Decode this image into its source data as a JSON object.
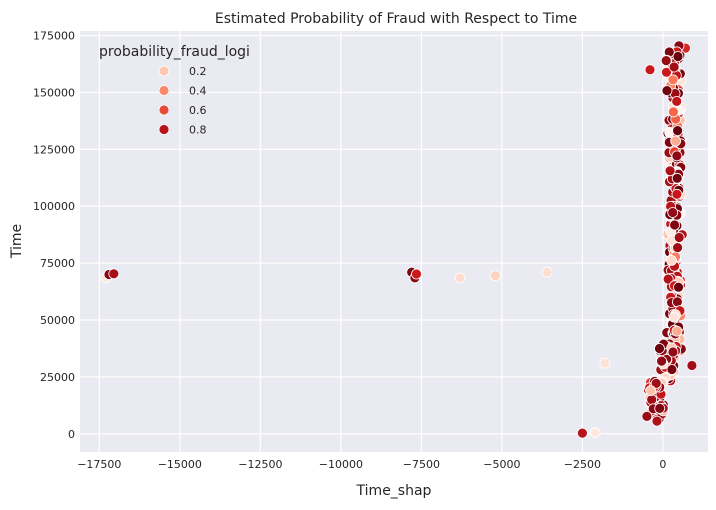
{
  "chart_data": {
    "type": "scatter",
    "title": "Estimated Probability of Fraud with Respect to Time",
    "xlabel": "Time_shap",
    "ylabel": "Time",
    "xlim": [
      -18100,
      1400
    ],
    "ylim": [
      -8000,
      177000
    ],
    "xticks": [
      -17500,
      -15000,
      -12500,
      -10000,
      -7500,
      -5000,
      -2500,
      0
    ],
    "xtick_labels": [
      "−17500",
      "−15000",
      "−12500",
      "−10000",
      "−7500",
      "−5000",
      "−2500",
      "0"
    ],
    "yticks": [
      0,
      25000,
      50000,
      75000,
      100000,
      125000,
      150000,
      175000
    ],
    "ytick_labels": [
      "0",
      "25000",
      "50000",
      "75000",
      "100000",
      "125000",
      "150000",
      "175000"
    ],
    "grid": true,
    "background": "#eaeaf2",
    "colormap": [
      "#fff5f0",
      "#fcbba1",
      "#fb6a4a",
      "#cb181d",
      "#67000d"
    ],
    "legend": {
      "title": "probability_fraud_logi",
      "placement": "top-left",
      "entries": [
        {
          "label": "0.2",
          "value": 0.2
        },
        {
          "label": "0.4",
          "value": 0.4
        },
        {
          "label": "0.6",
          "value": 0.6
        },
        {
          "label": "0.8",
          "value": 0.8
        }
      ]
    },
    "points": [
      {
        "x": -17300,
        "y": 68500,
        "p": 0.05
      },
      {
        "x": -17200,
        "y": 70000,
        "p": 0.92
      },
      {
        "x": -17050,
        "y": 70300,
        "p": 0.85
      },
      {
        "x": -7800,
        "y": 71000,
        "p": 0.95
      },
      {
        "x": -7700,
        "y": 68500,
        "p": 0.9
      },
      {
        "x": -7650,
        "y": 70200,
        "p": 0.75
      },
      {
        "x": -6300,
        "y": 68500,
        "p": 0.1
      },
      {
        "x": -5200,
        "y": 69500,
        "p": 0.15
      },
      {
        "x": -3600,
        "y": 71000,
        "p": 0.1
      },
      {
        "x": -1800,
        "y": 31000,
        "p": 0.08
      },
      {
        "x": -2500,
        "y": 300,
        "p": 0.8
      },
      {
        "x": -2100,
        "y": 500,
        "p": 0.05
      },
      {
        "x": -400,
        "y": 160000,
        "p": 0.75
      },
      {
        "x": 900,
        "y": 30000,
        "p": 0.85
      },
      {
        "x": 700,
        "y": 169500,
        "p": 0.7
      },
      {
        "x": 500,
        "y": 170500,
        "p": 0.92
      }
    ],
    "clusters": [
      {
        "x_center": 350,
        "x_spread": 320,
        "y_min": 36000,
        "y_max": 168000,
        "count": 300
      },
      {
        "x_center": 150,
        "x_spread": 380,
        "y_min": 23000,
        "y_max": 40000,
        "count": 60
      },
      {
        "x_center": -200,
        "x_spread": 420,
        "y_min": 5000,
        "y_max": 24000,
        "count": 70
      }
    ]
  }
}
